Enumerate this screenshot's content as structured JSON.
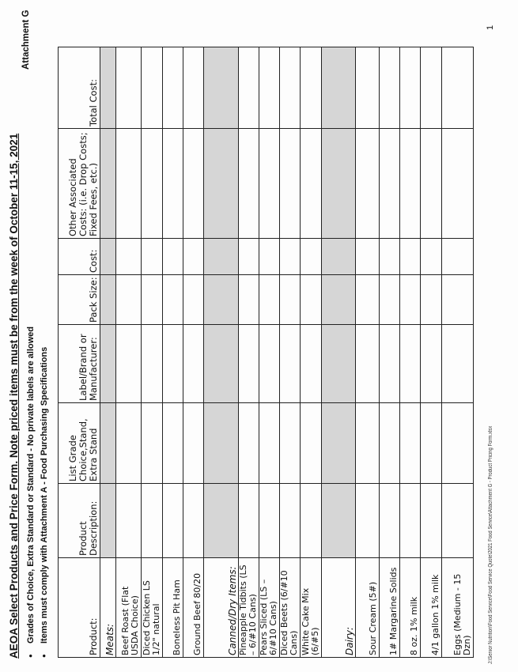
{
  "title": "AEOA Select Products and Price Form. Note priced items must be from the week of October 11-15, 2021",
  "bullets": [
    "Grades of Choice, Extra Standard or Standard - No private labels are allowed",
    "Items must comply with Attachment A - Food Purchasing Specifications"
  ],
  "attachment": "Attachment G",
  "columns": [
    "Product:",
    "Product Description:",
    "List Grade Choice,Stand, Extra Stand",
    "Label/Brand or Manufacturer:",
    "Pack Size:",
    "Cost:",
    "Other Associated Costs: (i.e. Drop Costs; Fixed Fees, etc.)",
    "Total Cost:"
  ],
  "rows": [
    {
      "type": "category",
      "label": "Meats:"
    },
    {
      "type": "item",
      "label": "Beef Roast  (Flat USDA Choice)"
    },
    {
      "type": "item",
      "label": "Diced Chicken LS 1/2\" natural"
    },
    {
      "type": "item",
      "label": "Boneless Pit Ham"
    },
    {
      "type": "item",
      "label": "Ground Beef 80/20"
    },
    {
      "type": "category",
      "label": "Canned/Dry Items:"
    },
    {
      "type": "item",
      "label": "Pineapple Tidbits (LS – 6/#10 Cans)"
    },
    {
      "type": "item",
      "label": "Pears Sliced (LS – 6/#10 Cans)"
    },
    {
      "type": "item",
      "label": "Diced Beets (6/#10 Cans)"
    },
    {
      "type": "item",
      "label": "White Cake Mix (6/#5)"
    },
    {
      "type": "category",
      "label": "Dairy:"
    },
    {
      "type": "item",
      "label": "Sour Cream (5#)"
    },
    {
      "type": "item",
      "label": "1# Margarine Solids"
    },
    {
      "type": "item",
      "label": "8 oz. 1% milk"
    },
    {
      "type": "item",
      "label": "4/1 gallon 1% milk"
    },
    {
      "type": "item",
      "label": "Eggs (Medium - 15 Dzn)"
    }
  ],
  "footer": "J:\\Senior Nutrition\\Food Service\\Food Service Quote\\2021 Food Service\\Attachment G - Product Pricing Form.xlsx",
  "page_number": "1",
  "colors": {
    "category_fill": "#d6d6d6",
    "grid": "#222222"
  }
}
